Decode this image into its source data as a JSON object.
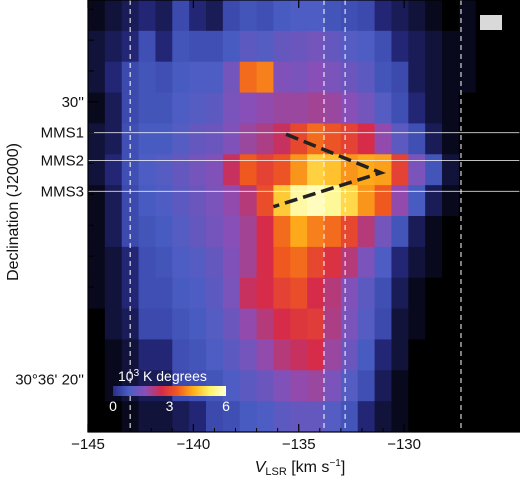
{
  "chart_data": {
    "type": "heatmap",
    "title": "",
    "xlabel": "V",
    "xlabel_sub": "LSR",
    "xlabel_units": " [km s",
    "xlabel_units_sup": "−1",
    "xlabel_units_end": "]",
    "ylabel": "Declination (J2000)",
    "xlim": [
      -145,
      -124.5
    ],
    "x_ticks": [
      {
        "value": -145,
        "label": "−145"
      },
      {
        "value": -140,
        "label": "−140"
      },
      {
        "value": -135,
        "label": "−135"
      },
      {
        "value": -130,
        "label": "−130"
      }
    ],
    "y_ticks": [
      {
        "row": 3.3,
        "label": "30''"
      },
      {
        "row": 12.3,
        "label": "30°36' 20''"
      }
    ],
    "source_rows": [
      {
        "row": 4.3,
        "label": "MMS1"
      },
      {
        "row": 5.2,
        "label": "MMS2"
      },
      {
        "row": 6.2,
        "label": "MMS3"
      }
    ],
    "velocity_markers_kms": [
      -143,
      -133.8,
      -132.8,
      -127.3
    ],
    "x_bins": [
      -145.0,
      -144.2,
      -143.4,
      -142.6,
      -141.8,
      -141.0,
      -140.2,
      -139.4,
      -138.6,
      -137.8,
      -137.0,
      -136.2,
      -135.4,
      -134.6,
      -133.8,
      -133.0,
      -132.2,
      -131.4,
      -130.6,
      -129.8,
      -129.0,
      -128.2,
      -127.4,
      -126.6,
      -125.8,
      -125.0
    ],
    "row_count": 14,
    "z": [
      [
        0.1,
        0.2,
        0.3,
        0.4,
        0.3,
        0.5,
        0.4,
        0.3,
        0.5,
        0.7,
        0.6,
        0.8,
        0.9,
        0.9,
        0.7,
        0.6,
        0.5,
        0.4,
        0.3,
        0.2,
        0.1,
        0.0,
        0.1,
        0.0,
        0.0,
        0.0
      ],
      [
        0.2,
        0.3,
        0.4,
        0.6,
        0.4,
        0.7,
        0.6,
        0.6,
        0.8,
        1.1,
        1.0,
        1.2,
        1.3,
        1.4,
        1.2,
        1.0,
        0.9,
        0.6,
        0.4,
        0.3,
        0.2,
        0.1,
        0.1,
        0.0,
        0.0,
        0.0
      ],
      [
        0.2,
        0.4,
        0.5,
        0.7,
        0.6,
        0.8,
        0.9,
        0.9,
        1.4,
        3.6,
        3.8,
        1.6,
        1.5,
        1.7,
        1.5,
        1.3,
        1.1,
        0.7,
        0.5,
        0.3,
        0.2,
        0.1,
        0.1,
        0.0,
        0.0,
        0.0
      ],
      [
        0.1,
        0.3,
        0.5,
        0.7,
        0.7,
        0.9,
        1.0,
        1.1,
        1.5,
        1.7,
        1.8,
        1.9,
        1.9,
        2.0,
        1.9,
        1.7,
        1.4,
        1.0,
        0.6,
        0.4,
        0.2,
        0.1,
        0.0,
        0.0,
        0.0,
        0.0
      ],
      [
        0.2,
        0.3,
        0.6,
        0.8,
        0.8,
        1.0,
        1.2,
        1.3,
        1.6,
        1.9,
        2.1,
        2.4,
        3.1,
        3.6,
        3.3,
        3.0,
        2.6,
        1.8,
        1.1,
        0.6,
        0.3,
        0.1,
        0.0,
        0.0,
        0.0,
        0.0
      ],
      [
        0.2,
        0.4,
        0.6,
        0.9,
        1.0,
        1.2,
        1.4,
        1.6,
        2.4,
        3.4,
        3.0,
        3.3,
        4.0,
        4.7,
        4.5,
        4.0,
        4.2,
        4.1,
        3.0,
        1.5,
        0.7,
        0.2,
        0.0,
        0.0,
        0.0,
        0.0
      ],
      [
        0.1,
        0.3,
        0.5,
        0.8,
        0.9,
        1.1,
        1.3,
        1.5,
        1.8,
        2.2,
        3.2,
        4.6,
        5.6,
        5.8,
        5.5,
        4.8,
        4.0,
        3.4,
        1.8,
        0.8,
        0.3,
        0.1,
        0.0,
        0.0,
        0.0,
        0.0
      ],
      [
        0.1,
        0.3,
        0.5,
        0.7,
        0.8,
        1.0,
        1.2,
        1.4,
        1.7,
        2.0,
        2.6,
        3.6,
        4.2,
        3.8,
        3.6,
        3.1,
        2.2,
        1.4,
        0.7,
        0.3,
        0.1,
        0.0,
        0.0,
        0.0,
        0.0,
        0.0
      ],
      [
        0.1,
        0.2,
        0.4,
        0.6,
        0.7,
        0.9,
        1.0,
        1.2,
        1.6,
        2.0,
        2.6,
        3.4,
        3.6,
        3.1,
        2.7,
        2.2,
        1.5,
        0.9,
        0.4,
        0.2,
        0.1,
        0.0,
        0.0,
        0.0,
        0.0,
        0.0
      ],
      [
        0.1,
        0.2,
        0.4,
        0.6,
        0.6,
        0.8,
        0.9,
        1.1,
        1.5,
        2.4,
        2.6,
        3.0,
        3.2,
        2.6,
        2.2,
        1.6,
        1.1,
        0.6,
        0.3,
        0.1,
        0.0,
        0.0,
        0.0,
        0.0,
        0.0,
        0.0
      ],
      [
        0.0,
        0.2,
        0.3,
        0.5,
        0.5,
        0.7,
        0.8,
        1.0,
        1.3,
        1.8,
        2.2,
        2.6,
        2.8,
        2.9,
        2.1,
        1.5,
        1.0,
        0.5,
        0.2,
        0.1,
        0.0,
        0.0,
        0.0,
        0.0,
        0.0,
        0.0
      ],
      [
        0.0,
        0.1,
        0.2,
        0.4,
        0.4,
        0.6,
        0.7,
        0.9,
        1.1,
        1.4,
        1.8,
        2.2,
        2.4,
        2.6,
        1.9,
        1.3,
        0.8,
        0.4,
        0.2,
        0.0,
        0.0,
        0.0,
        0.0,
        0.0,
        0.0,
        0.0
      ],
      [
        0.0,
        0.1,
        0.2,
        0.3,
        0.3,
        0.5,
        0.6,
        0.7,
        0.9,
        1.1,
        1.3,
        1.6,
        1.8,
        1.9,
        1.5,
        1.0,
        0.6,
        0.3,
        0.1,
        0.0,
        0.0,
        0.0,
        0.0,
        0.0,
        0.0,
        0.0
      ],
      [
        0.0,
        0.0,
        0.1,
        0.2,
        0.2,
        0.3,
        0.4,
        0.5,
        0.6,
        0.8,
        0.9,
        1.1,
        1.2,
        1.2,
        1.0,
        0.7,
        0.4,
        0.2,
        0.1,
        0.0,
        0.0,
        0.0,
        0.0,
        0.0,
        0.0,
        0.0
      ]
    ],
    "colorbar": {
      "title": "10",
      "title_sup": "3",
      "title_end": " K degrees",
      "range": [
        0,
        6
      ],
      "tick_labels": [
        {
          "value": 0,
          "label": "0"
        },
        {
          "value": 3,
          "label": "3"
        },
        {
          "value": 6,
          "label": "6"
        }
      ],
      "colors": [
        "#2a2d8c",
        "#4a5ec4",
        "#8a4fb8",
        "#d62a4a",
        "#f05a1e",
        "#ffb21a",
        "#fff36a",
        "#ffffd8"
      ]
    },
    "overlay_line": {
      "style": "dashed",
      "color": "#222222",
      "vertices_kms_row": [
        [
          -135.6,
          4.35
        ],
        [
          -131.1,
          5.6
        ],
        [
          -136.2,
          6.7
        ]
      ]
    }
  }
}
